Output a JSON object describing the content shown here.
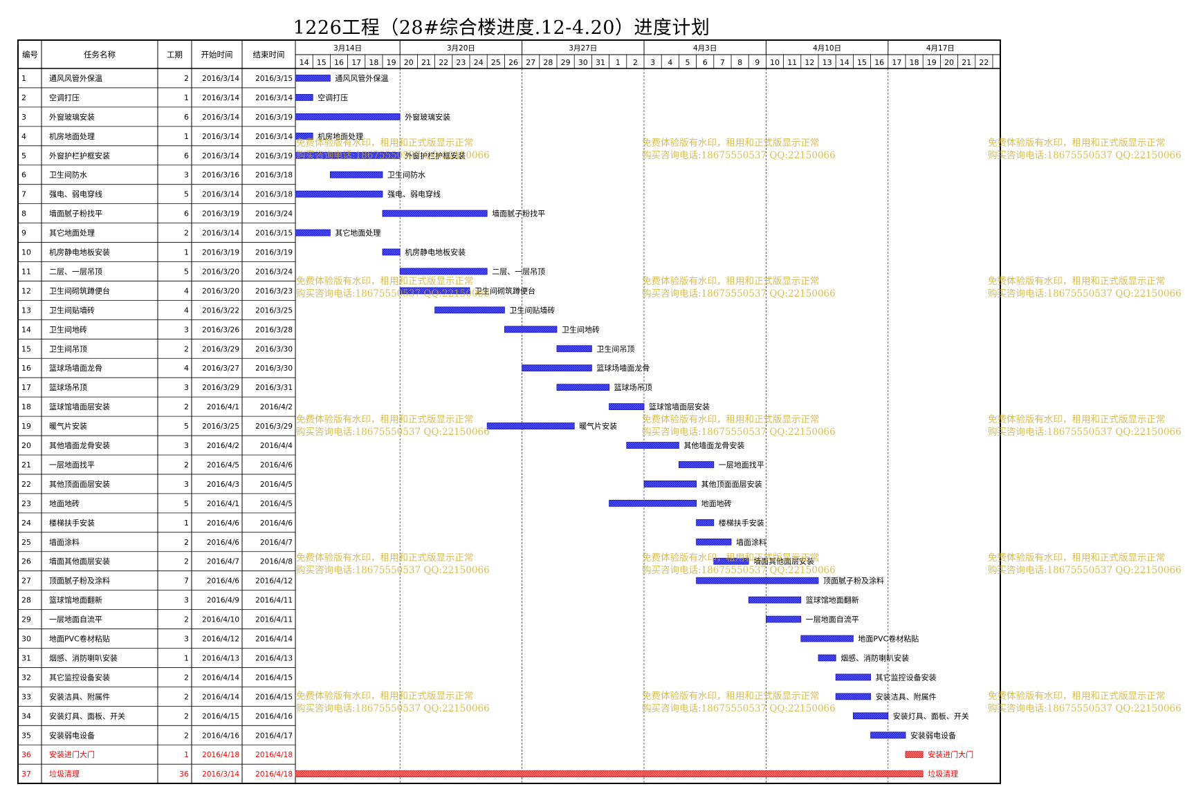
{
  "title": "1226工程（28#综合楼进度.12-4.20）进度计划",
  "columns": {
    "id": "编号",
    "name": "任务名称",
    "duration": "工期",
    "start": "开始时间",
    "end": "结束时间"
  },
  "colors": {
    "bar": "#4b4bff",
    "bar_critical": "#ff5c5c",
    "text_critical": "#ff0000"
  },
  "watermark": {
    "line1": "免费体验版有水印，租用和正式版显示正常",
    "line2": "购买咨询电话:18675550537 QQ:22150066"
  },
  "chart_data": {
    "type": "gantt",
    "title": "1226工程（28#综合楼进度.12-4.20）进度计划",
    "week_labels": [
      "3月14日",
      "3月20日",
      "3月27日",
      "4月3日",
      "4月10日",
      "4月17日"
    ],
    "day_labels": [
      "14",
      "15",
      "16",
      "17",
      "18",
      "19",
      "20",
      "21",
      "22",
      "23",
      "24",
      "25",
      "26",
      "27",
      "28",
      "29",
      "30",
      "31",
      "1",
      "2",
      "3",
      "4",
      "5",
      "6",
      "7",
      "8",
      "9",
      "10",
      "11",
      "12",
      "13",
      "14",
      "15",
      "16",
      "17",
      "18",
      "19",
      "20",
      "21",
      "22"
    ],
    "tasks": [
      {
        "id": "1",
        "name": "通风风管外保温",
        "duration": "2",
        "start": "2016/3/14",
        "end": "2016/3/15"
      },
      {
        "id": "2",
        "name": "空调打压",
        "duration": "1",
        "start": "2016/3/14",
        "end": "2016/3/14"
      },
      {
        "id": "3",
        "name": "外窗玻璃安装",
        "duration": "6",
        "start": "2016/3/14",
        "end": "2016/3/19"
      },
      {
        "id": "4",
        "name": "机房地面处理",
        "duration": "1",
        "start": "2016/3/14",
        "end": "2016/3/14"
      },
      {
        "id": "5",
        "name": "外窗护栏护框安装",
        "duration": "6",
        "start": "2016/3/14",
        "end": "2016/3/19"
      },
      {
        "id": "6",
        "name": "卫生间防水",
        "duration": "3",
        "start": "2016/3/16",
        "end": "2016/3/18"
      },
      {
        "id": "7",
        "name": "强电、弱电穿线",
        "duration": "5",
        "start": "2016/3/14",
        "end": "2016/3/18"
      },
      {
        "id": "8",
        "name": "墙面腻子粉找平",
        "duration": "6",
        "start": "2016/3/19",
        "end": "2016/3/24"
      },
      {
        "id": "9",
        "name": "其它地面处理",
        "duration": "2",
        "start": "2016/3/14",
        "end": "2016/3/15"
      },
      {
        "id": "10",
        "name": "机房静电地板安装",
        "duration": "1",
        "start": "2016/3/19",
        "end": "2016/3/19"
      },
      {
        "id": "11",
        "name": "二层、一层吊顶",
        "duration": "5",
        "start": "2016/3/20",
        "end": "2016/3/24"
      },
      {
        "id": "12",
        "name": "卫生间砌筑蹲便台",
        "duration": "4",
        "start": "2016/3/20",
        "end": "2016/3/23"
      },
      {
        "id": "13",
        "name": "卫生间贴墙砖",
        "duration": "4",
        "start": "2016/3/22",
        "end": "2016/3/25"
      },
      {
        "id": "14",
        "name": "卫生间地砖",
        "duration": "3",
        "start": "2016/3/26",
        "end": "2016/3/28"
      },
      {
        "id": "15",
        "name": "卫生间吊顶",
        "duration": "2",
        "start": "2016/3/29",
        "end": "2016/3/30"
      },
      {
        "id": "16",
        "name": "篮球场墙面龙骨",
        "duration": "4",
        "start": "2016/3/27",
        "end": "2016/3/30"
      },
      {
        "id": "17",
        "name": "篮球场吊顶",
        "duration": "3",
        "start": "2016/3/29",
        "end": "2016/3/31"
      },
      {
        "id": "18",
        "name": "篮球馆墙面层安装",
        "duration": "2",
        "start": "2016/4/1",
        "end": "2016/4/2"
      },
      {
        "id": "19",
        "name": "暖气片安装",
        "duration": "5",
        "start": "2016/3/25",
        "end": "2016/3/29"
      },
      {
        "id": "20",
        "name": "其他墙面龙骨安装",
        "duration": "3",
        "start": "2016/4/2",
        "end": "2016/4/4"
      },
      {
        "id": "21",
        "name": "一层地面找平",
        "duration": "2",
        "start": "2016/4/5",
        "end": "2016/4/6"
      },
      {
        "id": "22",
        "name": "其他顶面面层安装",
        "duration": "3",
        "start": "2016/4/3",
        "end": "2016/4/5"
      },
      {
        "id": "23",
        "name": "地面地砖",
        "duration": "5",
        "start": "2016/4/1",
        "end": "2016/4/5"
      },
      {
        "id": "24",
        "name": "楼梯扶手安装",
        "duration": "1",
        "start": "2016/4/6",
        "end": "2016/4/6"
      },
      {
        "id": "25",
        "name": "墙面涂料",
        "duration": "2",
        "start": "2016/4/6",
        "end": "2016/4/7"
      },
      {
        "id": "26",
        "name": "墙面其他面层安装",
        "duration": "2",
        "start": "2016/4/7",
        "end": "2016/4/8"
      },
      {
        "id": "27",
        "name": "顶面腻子粉及涂料",
        "duration": "7",
        "start": "2016/4/6",
        "end": "2016/4/12"
      },
      {
        "id": "28",
        "name": "篮球馆地面翻新",
        "duration": "3",
        "start": "2016/4/9",
        "end": "2016/4/11"
      },
      {
        "id": "29",
        "name": "一层地面自流平",
        "duration": "2",
        "start": "2016/4/10",
        "end": "2016/4/11"
      },
      {
        "id": "30",
        "name": "地面PVC卷材粘贴",
        "duration": "3",
        "start": "2016/4/12",
        "end": "2016/4/14"
      },
      {
        "id": "31",
        "name": "烟感、消防喇叭安装",
        "duration": "1",
        "start": "2016/4/13",
        "end": "2016/4/13"
      },
      {
        "id": "32",
        "name": "其它监控设备安装",
        "duration": "2",
        "start": "2016/4/14",
        "end": "2016/4/15"
      },
      {
        "id": "33",
        "name": "安装洁具、附属件",
        "duration": "2",
        "start": "2016/4/14",
        "end": "2016/4/15"
      },
      {
        "id": "34",
        "name": "安装灯具、面板、开关",
        "duration": "2",
        "start": "2016/4/15",
        "end": "2016/4/16"
      },
      {
        "id": "35",
        "name": "安装弱电设备",
        "duration": "2",
        "start": "2016/4/16",
        "end": "2016/4/17"
      },
      {
        "id": "36",
        "name": "安装进门大门",
        "duration": "1",
        "start": "2016/4/18",
        "end": "2016/4/18",
        "critical": true
      },
      {
        "id": "37",
        "name": "垃圾清理",
        "duration": "36",
        "start": "2016/3/14",
        "end": "2016/4/18",
        "critical": true
      }
    ]
  }
}
